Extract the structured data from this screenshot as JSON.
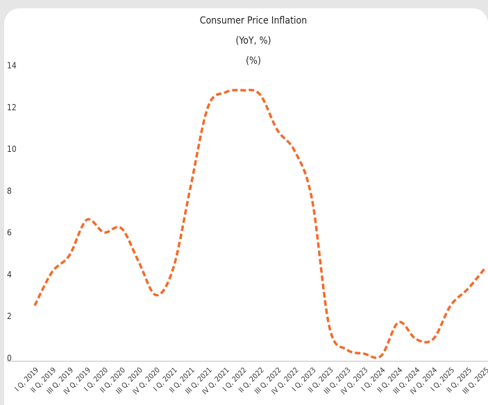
{
  "chart_data": {
    "type": "line",
    "title": "Consumer Price Inflation",
    "subtitle": "(YoY, %)",
    "y_label": "(%)",
    "categories": [
      "I Q, 2019",
      "II Q, 2019",
      "III Q, 2019",
      "IV Q, 2019",
      "I Q, 2020",
      "II Q, 2020",
      "III Q, 2020",
      "IV Q, 2020",
      "I Q, 2021",
      "II Q, 2021",
      "III Q, 2021",
      "IV Q, 2021",
      "I Q, 2022",
      "II Q, 2022",
      "III Q, 2022",
      "IV Q, 2022",
      "I Q, 2023",
      "II Q, 2023",
      "III Q, 2023",
      "IV Q, 2023",
      "I Q, 2024",
      "II Q, 2024",
      "III Q, 2024",
      "IV Q, 2024",
      "I Q, 2025",
      "II Q, 2025",
      "III Q, 2025"
    ],
    "values": [
      2.6,
      4.2,
      5.0,
      6.7,
      6.1,
      6.3,
      4.7,
      3.1,
      4.4,
      8.3,
      12.1,
      12.8,
      12.9,
      12.7,
      11.0,
      10.0,
      7.7,
      1.6,
      0.5,
      0.3,
      0.2,
      1.8,
      1.0,
      1.0,
      2.6,
      3.4,
      4.4
    ],
    "color": "#f26b2a",
    "ylim": [
      0,
      14
    ],
    "yticks": [
      0,
      2,
      4,
      6,
      8,
      10,
      12,
      14
    ],
    "grid": false
  }
}
